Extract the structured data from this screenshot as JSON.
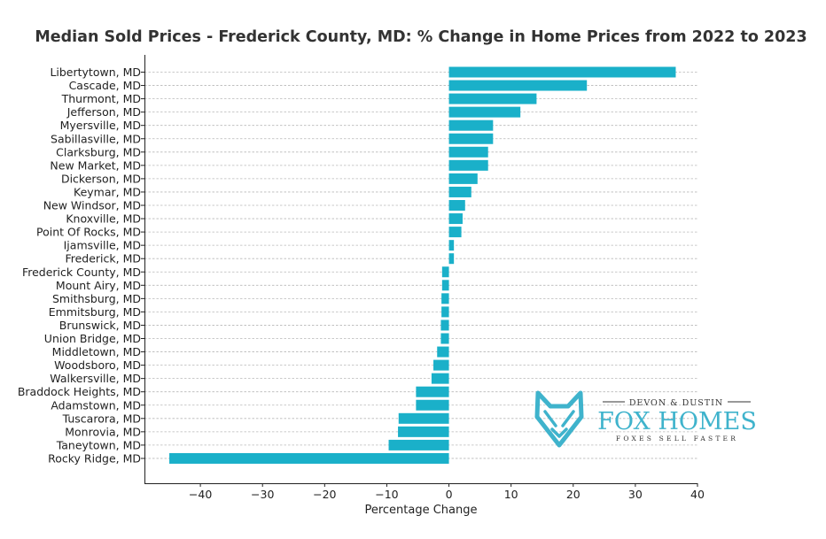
{
  "chart_data": {
    "type": "bar",
    "orientation": "horizontal",
    "title": "Median Sold Prices - Frederick County, MD: % Change in Home Prices from 2022 to 2023",
    "xlabel": "Percentage Change",
    "ylabel": "",
    "xlim": [
      -49,
      40
    ],
    "xticks": [
      -40,
      -30,
      -20,
      -10,
      0,
      10,
      20,
      30,
      40
    ],
    "xtick_labels": [
      "−40",
      "−30",
      "−20",
      "−10",
      "0",
      "10",
      "20",
      "30",
      "40"
    ],
    "grid": "horizontal dashed",
    "bar_color": "#1ab0c9",
    "categories": [
      "Libertytown, MD",
      "Cascade, MD",
      "Thurmont, MD",
      "Jefferson, MD",
      "Myersville, MD",
      "Sabillasville, MD",
      "Clarksburg, MD",
      "New Market, MD",
      "Dickerson, MD",
      "Keymar, MD",
      "New Windsor, MD",
      "Knoxville, MD",
      "Point Of Rocks, MD",
      "Ijamsville, MD",
      "Frederick, MD",
      "Frederick County, MD",
      "Mount Airy, MD",
      "Smithsburg, MD",
      "Emmitsburg, MD",
      "Brunswick, MD",
      "Union Bridge, MD",
      "Middletown, MD",
      "Woodsboro, MD",
      "Walkersville, MD",
      "Braddock Heights, MD",
      "Adamstown, MD",
      "Tuscarora, MD",
      "Monrovia, MD",
      "Taneytown, MD",
      "Rocky Ridge, MD"
    ],
    "values": [
      36.5,
      22.2,
      14.1,
      11.5,
      7.1,
      7.1,
      6.3,
      6.3,
      4.6,
      3.6,
      2.6,
      2.2,
      2.0,
      0.8,
      0.8,
      -1.1,
      -1.1,
      -1.2,
      -1.2,
      -1.3,
      -1.3,
      -1.9,
      -2.5,
      -2.8,
      -5.3,
      -5.3,
      -8.1,
      -8.2,
      -9.7,
      -45.0
    ]
  },
  "logo": {
    "top_line": "DEVON & DUSTIN",
    "brand": "FOX HOMES",
    "tagline": "FOXES SELL FASTER",
    "color": "#3fb3cc",
    "icon": "fox-head-icon"
  }
}
